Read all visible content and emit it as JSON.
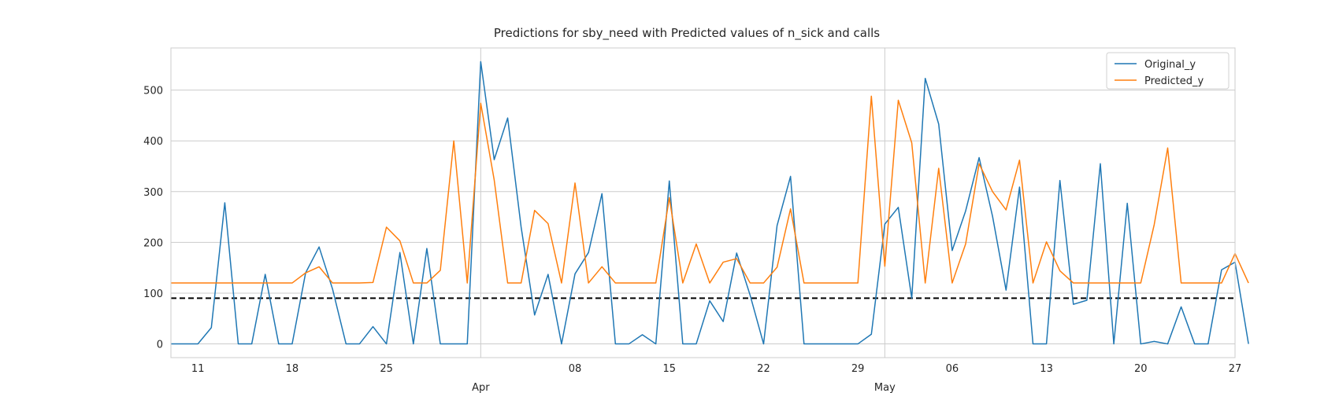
{
  "chart_data": {
    "type": "line",
    "title": "Predictions for sby_need with Predicted values of n_sick and calls",
    "xlabel": "",
    "ylabel": "",
    "x_range": [
      "2020-03-09",
      "2020-05-27"
    ],
    "ylim": [
      -27,
      583
    ],
    "grid": true,
    "legend_position": "top-right",
    "y_ticks": [
      0,
      100,
      200,
      300,
      400,
      500
    ],
    "x_ticks": [
      {
        "date": "2020-03-11",
        "label": "11"
      },
      {
        "date": "2020-03-18",
        "label": "18"
      },
      {
        "date": "2020-03-25",
        "label": "25"
      },
      {
        "date": "2020-04-08",
        "label": "08"
      },
      {
        "date": "2020-04-15",
        "label": "15"
      },
      {
        "date": "2020-04-22",
        "label": "22"
      },
      {
        "date": "2020-04-29",
        "label": "29"
      },
      {
        "date": "2020-05-06",
        "label": "06"
      },
      {
        "date": "2020-05-13",
        "label": "13"
      },
      {
        "date": "2020-05-20",
        "label": "20"
      },
      {
        "date": "2020-05-27",
        "label": "27"
      }
    ],
    "month_ticks": [
      {
        "date": "2020-04-01",
        "label": "Apr"
      },
      {
        "date": "2020-05-01",
        "label": "May"
      }
    ],
    "reference_line": {
      "y": 90,
      "style": "dashed",
      "color": "#000000"
    },
    "x_dates_start": "2020-03-09",
    "series": [
      {
        "name": "Original_y",
        "color": "#1f77b4",
        "values": [
          0,
          0,
          0,
          32,
          278,
          0,
          0,
          137,
          0,
          0,
          140,
          191,
          108,
          0,
          0,
          34,
          0,
          180,
          0,
          188,
          0,
          0,
          0,
          556,
          363,
          445,
          230,
          57,
          137,
          0,
          138,
          180,
          296,
          0,
          0,
          18,
          0,
          321,
          0,
          0,
          85,
          44,
          179,
          96,
          0,
          233,
          330,
          0,
          0,
          0,
          0,
          0,
          19,
          236,
          269,
          90,
          523,
          433,
          184,
          262,
          367,
          251,
          106,
          309,
          0,
          0,
          322,
          78,
          86,
          355,
          0,
          277,
          0,
          5,
          0,
          73,
          0,
          0,
          146,
          161,
          0
        ]
      },
      {
        "name": "Predicted_y",
        "color": "#ff7f0e",
        "values": [
          120,
          120,
          120,
          120,
          120,
          120,
          120,
          120,
          120,
          120,
          140,
          152,
          120,
          120,
          120,
          121,
          230,
          203,
          120,
          120,
          145,
          400,
          120,
          474,
          323,
          120,
          120,
          263,
          237,
          120,
          317,
          120,
          152,
          120,
          120,
          120,
          120,
          288,
          120,
          197,
          120,
          161,
          168,
          120,
          120,
          151,
          266,
          120,
          120,
          120,
          120,
          120,
          488,
          153,
          480,
          396,
          120,
          346,
          120,
          197,
          355,
          300,
          264,
          362,
          120,
          201,
          144,
          120,
          120,
          120,
          120,
          120,
          120,
          235,
          386,
          120,
          120,
          120,
          120,
          178,
          120
        ]
      }
    ]
  }
}
